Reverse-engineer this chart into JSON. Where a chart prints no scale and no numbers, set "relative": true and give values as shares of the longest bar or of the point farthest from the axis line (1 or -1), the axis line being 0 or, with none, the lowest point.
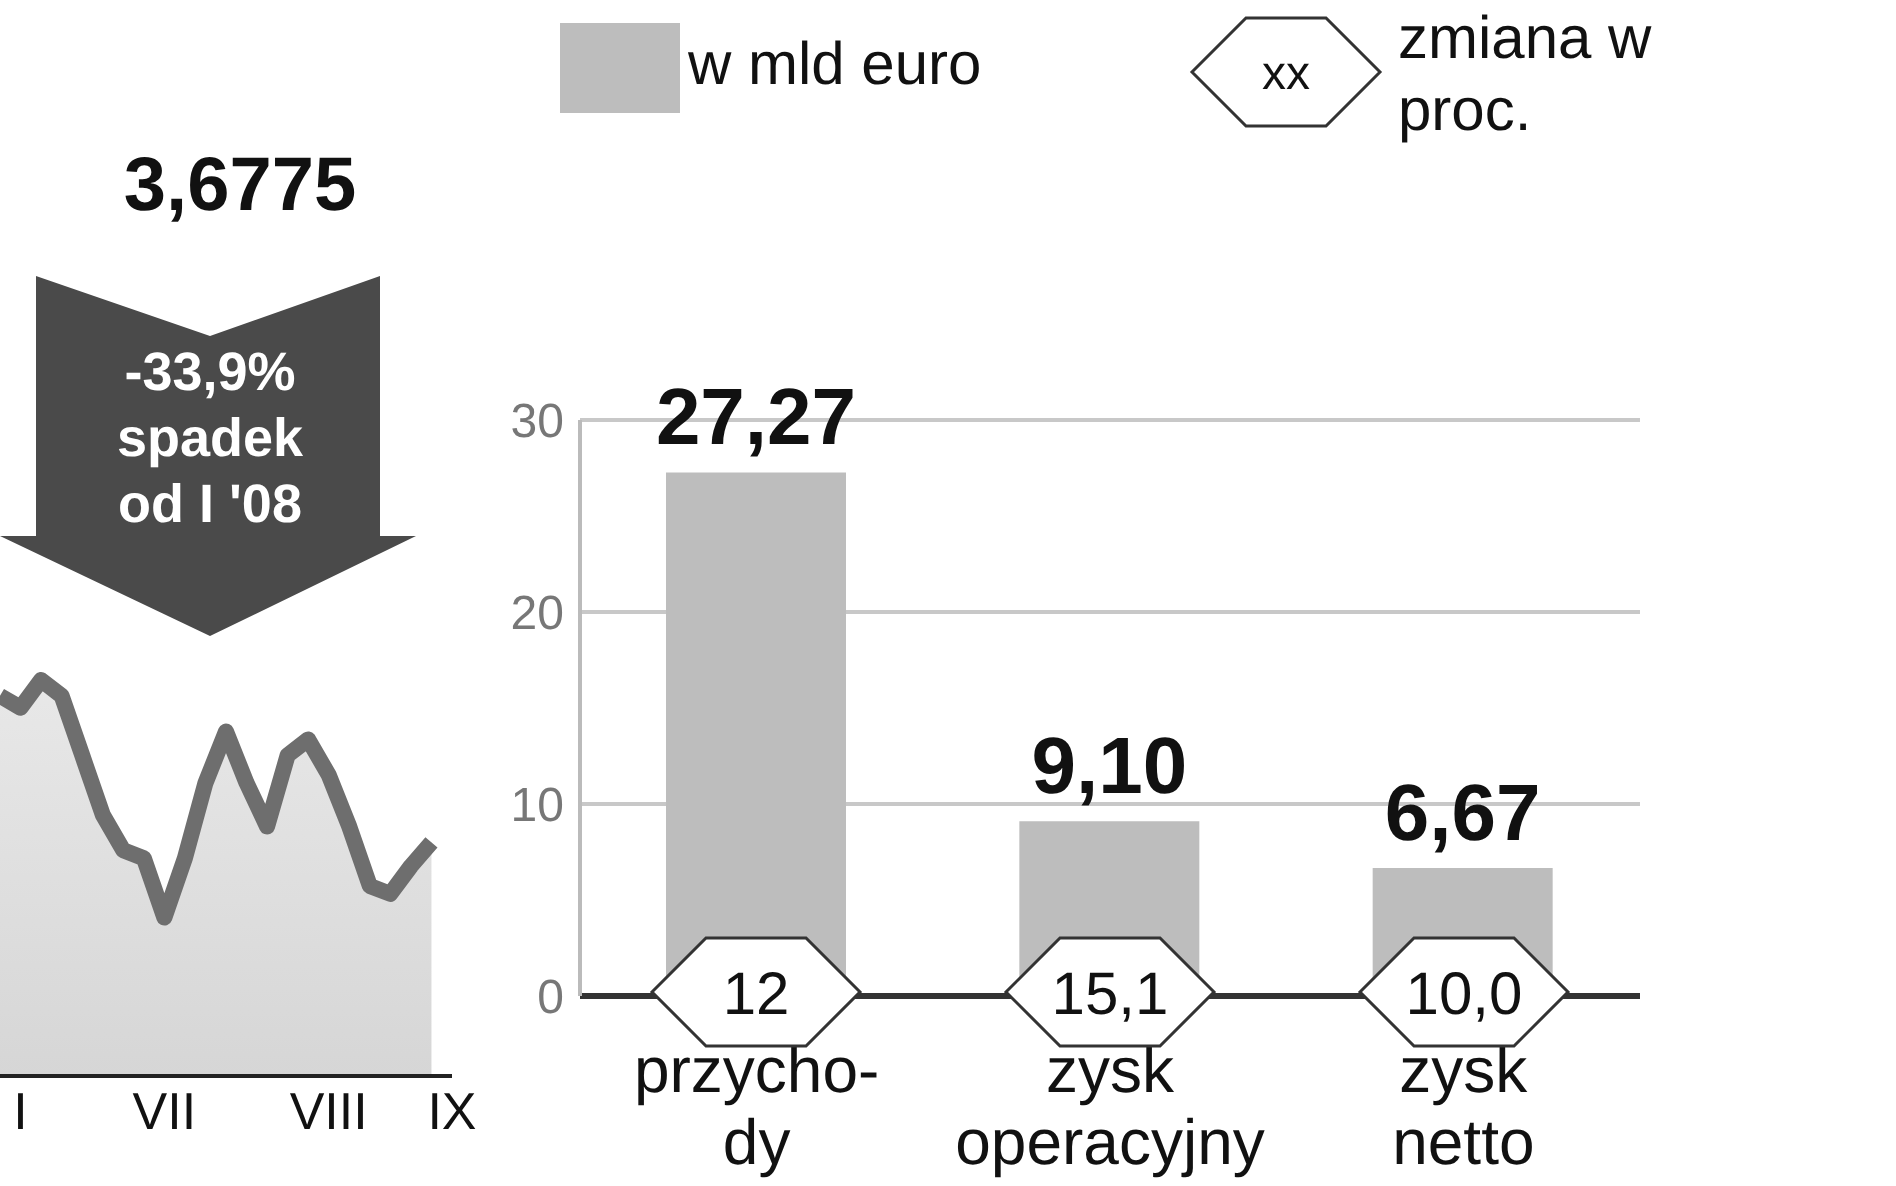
{
  "chart_data": [
    {
      "type": "area",
      "relative": true,
      "color": "#6e6e6e",
      "categories": [
        null,
        "I",
        null,
        null,
        null,
        null,
        null,
        null,
        "VII",
        null,
        null,
        null,
        null,
        null,
        null,
        null,
        "VIII",
        null,
        null,
        null,
        null,
        null,
        "IX"
      ],
      "values": [
        0.96,
        0.93,
        1,
        0.96,
        0.81,
        0.66,
        0.57,
        0.55,
        0.4,
        0.55,
        0.74,
        0.87,
        0.74,
        0.63,
        0.81,
        0.85,
        0.76,
        0.63,
        0.48,
        0.46,
        0.53,
        0.59,
        null
      ],
      "annotations": [
        "3,6775",
        "-33,9% spadek od I '08"
      ]
    },
    {
      "type": "bar",
      "categories": [
        "przycho-\ndy",
        "zysk\noperacyjny",
        "zysk\nnetto"
      ],
      "series": [
        {
          "name": "w mld euro",
          "color": "#bdbdbd",
          "values": [
            27.27,
            9.1,
            6.67
          ],
          "value_labels": [
            "27,27",
            "9,10",
            "6,67"
          ]
        }
      ],
      "ylim": [
        0,
        30
      ],
      "yticks": [
        0,
        10,
        20,
        30
      ],
      "grid": "y",
      "legend": "top",
      "annotations": [
        {
          "text": "12",
          "x": "przycho-\ndy",
          "y": 0
        },
        {
          "text": "15,1",
          "x": "zysk\noperacyjny",
          "y": 0
        },
        {
          "text": "10,0",
          "x": "zysk\nnetto",
          "y": 0
        },
        "xx",
        "zmiana w proc."
      ]
    }
  ]
}
